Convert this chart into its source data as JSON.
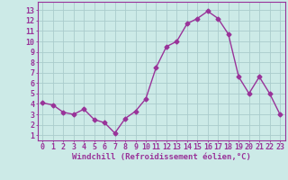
{
  "x": [
    0,
    1,
    2,
    3,
    4,
    5,
    6,
    7,
    8,
    9,
    10,
    11,
    12,
    13,
    14,
    15,
    16,
    17,
    18,
    19,
    20,
    21,
    22,
    23
  ],
  "y": [
    4.1,
    3.9,
    3.2,
    3.0,
    3.5,
    2.5,
    2.2,
    1.2,
    2.6,
    3.3,
    4.5,
    7.5,
    9.5,
    10.0,
    11.7,
    12.2,
    12.9,
    12.2,
    10.7,
    6.6,
    5.0,
    6.6,
    5.0,
    3.0
  ],
  "line_color": "#993399",
  "marker": "D",
  "marker_size": 2.5,
  "bg_color": "#cceae7",
  "grid_color": "#aacccc",
  "axis_color": "#993399",
  "xlabel": "Windchill (Refroidissement éolien,°C)",
  "xlabel_fontsize": 6.5,
  "xtick_labels": [
    "0",
    "1",
    "2",
    "3",
    "4",
    "5",
    "6",
    "7",
    "8",
    "9",
    "10",
    "11",
    "12",
    "13",
    "14",
    "15",
    "16",
    "17",
    "18",
    "19",
    "20",
    "21",
    "22",
    "23"
  ],
  "ytick_labels": [
    "1",
    "2",
    "3",
    "4",
    "5",
    "6",
    "7",
    "8",
    "9",
    "10",
    "11",
    "12",
    "13"
  ],
  "ylim": [
    0.5,
    13.8
  ],
  "xlim": [
    -0.5,
    23.5
  ],
  "tick_fontsize": 6.0,
  "linewidth": 1.0
}
